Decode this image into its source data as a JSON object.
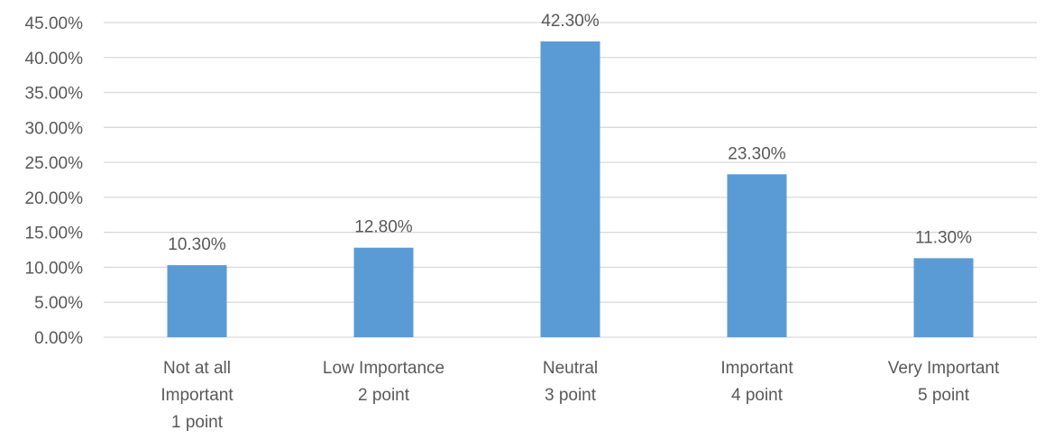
{
  "chart_data": {
    "type": "bar",
    "categories": [
      [
        "Not at all",
        "Important",
        "1 point"
      ],
      [
        "Low Importance",
        "2 point"
      ],
      [
        "Neutral",
        "3 point"
      ],
      [
        "Important",
        "4 point"
      ],
      [
        "Very Important",
        "5 point"
      ]
    ],
    "values": [
      10.3,
      12.8,
      42.3,
      23.3,
      11.3
    ],
    "data_labels": [
      "10.30%",
      "12.80%",
      "42.30%",
      "23.30%",
      "11.30%"
    ],
    "yticks": [
      "0.00%",
      "5.00%",
      "10.00%",
      "15.00%",
      "20.00%",
      "25.00%",
      "30.00%",
      "35.00%",
      "40.00%",
      "45.00%"
    ],
    "ylim": [
      0,
      45
    ],
    "title": "",
    "xlabel": "",
    "ylabel": "",
    "grid": true,
    "legend": "none",
    "colors": {
      "bar": "#5b9bd5",
      "gridline": "#d9d9d9",
      "text": "#595959"
    }
  }
}
